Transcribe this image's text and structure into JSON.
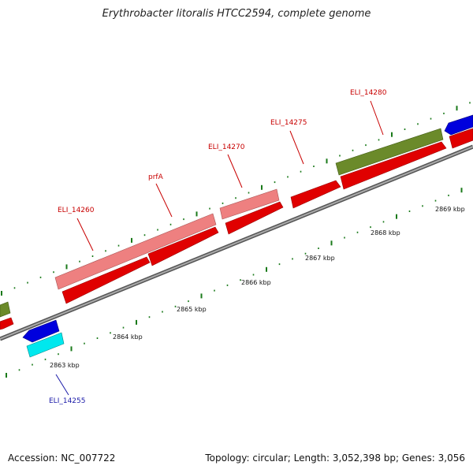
{
  "title": "Erythrobacter litoralis HTCC2594, complete genome",
  "footer": {
    "accession": "Accession: NC_007722",
    "summary": "Topology: circular; Length: 3,052,398 bp; Genes: 3,056"
  },
  "ruler": {
    "unit": "kbp",
    "labels": [
      "2863 kbp",
      "2864 kbp",
      "2865 kbp",
      "2866 kbp",
      "2867 kbp",
      "2868 kbp",
      "2869 kbp"
    ]
  },
  "gene_labels": [
    {
      "name": "ELI_14255",
      "color": "#1a1aa8"
    },
    {
      "name": "ELI_14260",
      "color": "#c80000"
    },
    {
      "name": "prfA",
      "color": "#c80000"
    },
    {
      "name": "ELI_14270",
      "color": "#c80000"
    },
    {
      "name": "ELI_14275",
      "color": "#c80000"
    },
    {
      "name": "ELI_14280",
      "color": "#c80000"
    }
  ],
  "colors": {
    "forward_cds": "#e00000",
    "rna_pink": "#ee8080",
    "reverse_blue": "#0000dd",
    "cyan_feature": "#00e8ee",
    "olive_feature": "#6b8a2a",
    "backbone": "#777777",
    "tick": "#1a7a1a"
  }
}
